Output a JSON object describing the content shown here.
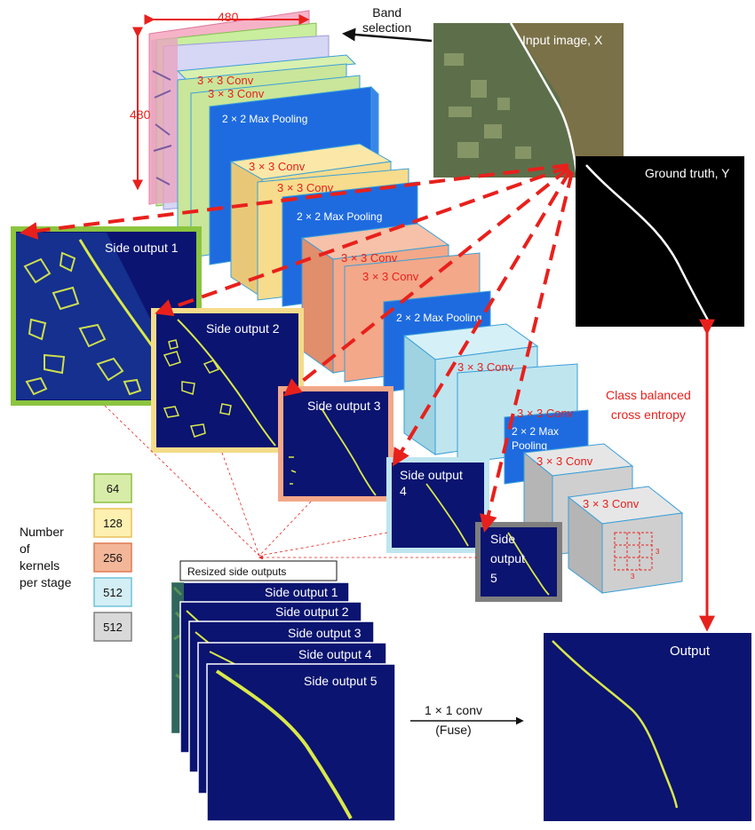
{
  "input": {
    "band_selection": [
      "Band",
      "selection"
    ],
    "dim_width": "480",
    "dim_height": "480",
    "input_image_label": "Input image, X",
    "ground_truth_label": "Ground truth, Y"
  },
  "stages": {
    "stage1_conv_a": "3 × 3 Conv",
    "stage1_conv_b": "3 × 3 Conv",
    "stage1_pool": "2 × 2 Max Pooling",
    "stage2_conv_a": "3 × 3 Conv",
    "stage2_conv_b": "3 × 3 Conv",
    "stage2_pool": "2 × 2 Max Pooling",
    "stage3_conv_a": "3 × 3 Conv",
    "stage3_conv_b": "3 × 3 Conv",
    "stage3_pool": "2 × 2 Max Pooling",
    "stage4_conv_a": "3 × 3 Conv",
    "stage4_conv_b": "3 × 3 Conv",
    "stage4_pool": [
      "2 × 2 Max",
      "Pooling"
    ],
    "stage5_conv_a": "3 × 3 Conv",
    "stage5_conv_b": "3 × 3 Conv",
    "kernel_mark": "3"
  },
  "side_outputs": {
    "s1": "Side output 1",
    "s2": "Side output 2",
    "s3": "Side output 3",
    "s4": [
      "Side output",
      "4"
    ],
    "s5": [
      "Side",
      "output",
      "5"
    ]
  },
  "legend": {
    "title": [
      "Number",
      "of",
      "kernels",
      "per stage"
    ],
    "items": [
      {
        "label": "64",
        "color": "#d8ecaa",
        "border": "#8bbf3f"
      },
      {
        "label": "128",
        "color": "#fdf0b0",
        "border": "#e8c15a"
      },
      {
        "label": "256",
        "color": "#f3b699",
        "border": "#e07a50"
      },
      {
        "label": "512",
        "color": "#d4eef5",
        "border": "#6fc3d8"
      },
      {
        "label": "512",
        "color": "#d9d9d9",
        "border": "#7f7f7f"
      }
    ]
  },
  "resized": {
    "title": "Resized side outputs",
    "items": [
      "Side output 1",
      "Side output 2",
      "Side output 3",
      "Side output 4",
      "Side output 5"
    ]
  },
  "fuse": {
    "line1": "1 × 1 conv",
    "line2": "(Fuse)"
  },
  "output_label": "Output",
  "loss_label": [
    "Class balanced",
    "cross entropy"
  ],
  "colors": {
    "red_label": "#e8201c",
    "map_bg": "#0b1470",
    "edge": "#d9e84a",
    "stage1": "#c9e69a",
    "stage2": "#f6dc8c",
    "stage3": "#f3a889",
    "stage4": "#bfe5ef",
    "stage5": "#cfcfcf",
    "pool": "#1e6be0"
  }
}
